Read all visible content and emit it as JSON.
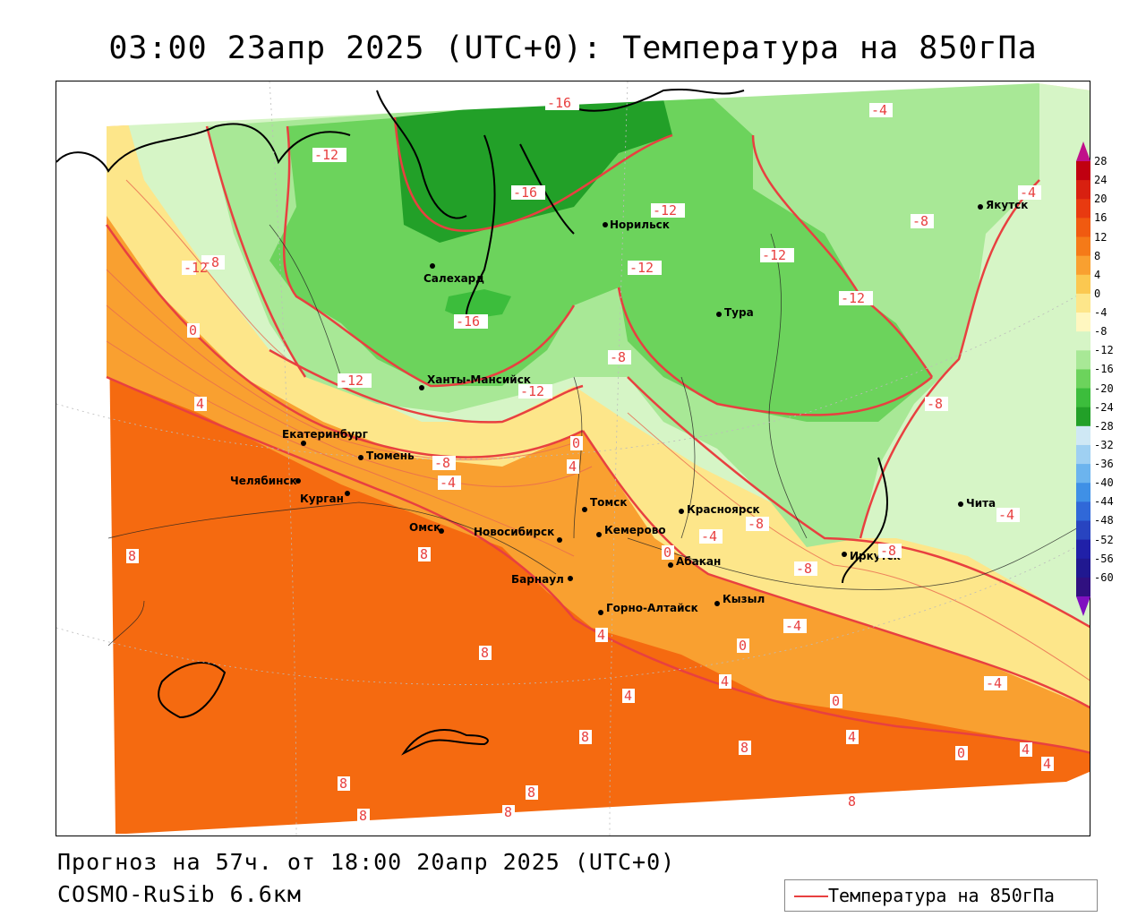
{
  "title": "03:00 23апр 2025 (UTC+0): Температура на 850гПа",
  "footer": {
    "forecast": "Прогноз на 57ч. от 18:00 20апр 2025 (UTC+0)",
    "model": "COSMO-RuSib 6.6км"
  },
  "legend": {
    "label": "Температура на 850гПа",
    "line_color": "#e84040"
  },
  "colorbar": {
    "levels": [
      "28",
      "24",
      "20",
      "16",
      "12",
      "8",
      "4",
      "0",
      "-4",
      "-8",
      "-12",
      "-16",
      "-20",
      "-24",
      "-28",
      "-32",
      "-36",
      "-40",
      "-44",
      "-48",
      "-52",
      "-56",
      "-60"
    ],
    "colors": [
      "#c00010",
      "#d82010",
      "#e83a10",
      "#f05a10",
      "#f57a18",
      "#f9a030",
      "#fbc850",
      "#fde68a",
      "#fff7c0",
      "#d6f5c6",
      "#a8e896",
      "#6cd35c",
      "#3cbd3c",
      "#22a028",
      "#cfe8f5",
      "#9fd0f2",
      "#6cb4ee",
      "#3f90e6",
      "#3068d8",
      "#2844c0",
      "#2020a8",
      "#201890",
      "#301080"
    ]
  },
  "cities": [
    {
      "name": "Салехард"
    },
    {
      "name": "Норильск"
    },
    {
      "name": "Якутск"
    },
    {
      "name": "Тура"
    },
    {
      "name": "Ханты-Мансийск"
    },
    {
      "name": "Екатеринбург"
    },
    {
      "name": "Тюмень"
    },
    {
      "name": "Челябинск"
    },
    {
      "name": "Курган"
    },
    {
      "name": "Омск"
    },
    {
      "name": "Новосибирск"
    },
    {
      "name": "Томск"
    },
    {
      "name": "Кемерово"
    },
    {
      "name": "Красноярск"
    },
    {
      "name": "Абакан"
    },
    {
      "name": "Барнаул"
    },
    {
      "name": "Горно-Алтайск"
    },
    {
      "name": "Кызыл"
    },
    {
      "name": "Иркутск"
    },
    {
      "name": "Чита"
    }
  ],
  "isotherm_labels": [
    "-16",
    "-12",
    "-16",
    "-4",
    "-12",
    "-8",
    "-4",
    "-8",
    "-12",
    "-12",
    "-12",
    "-12",
    "-16",
    "-8",
    "-12",
    "0",
    "-12",
    "-8",
    "0",
    "4",
    "-8",
    "-4",
    "4",
    "8",
    "8",
    "0",
    "-4",
    "-8",
    "-8",
    "-8",
    "-4",
    "-4",
    "8",
    "4",
    "4",
    "4",
    "0",
    "4",
    "0",
    "-4",
    "8",
    "8",
    "4",
    "0",
    "4",
    "8",
    "8",
    "8",
    "8",
    "8",
    "8"
  ]
}
